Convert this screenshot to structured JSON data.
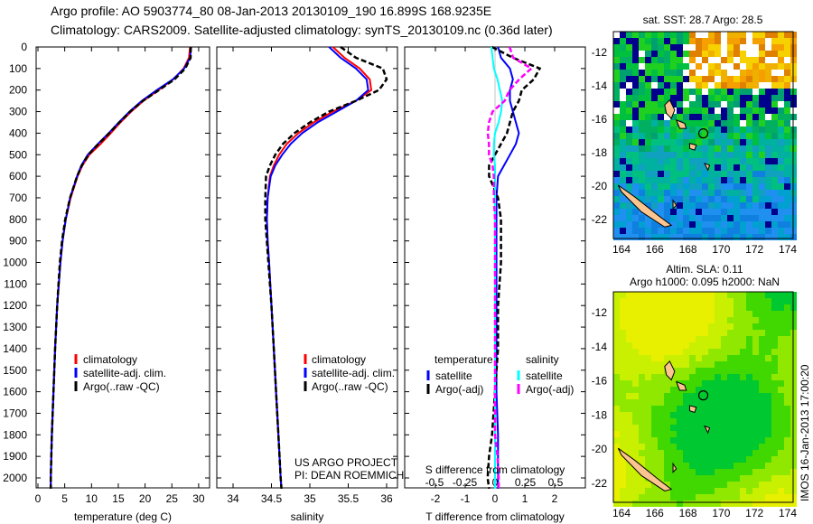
{
  "header": {
    "line1": "Argo profile: AO 5903774_80 08-Jan-2013 20130109_190 16.899S 168.9235E",
    "line2": "Climatology: CARS2009. Satellite-adjusted climatology: synTS_20130109.nc (0.36d later)"
  },
  "colors": {
    "climatology": "#ff0000",
    "satellite": "#0000ff",
    "argo": "#000000",
    "sal_sat": "#00ffff",
    "sal_argo": "#ff00ff"
  },
  "chart_data": [
    {
      "type": "line",
      "name": "temperature",
      "xlabel": "temperature (deg C)",
      "ylabel": "depth",
      "xlim": [
        -1,
        31.5
      ],
      "ylim": [
        2060,
        0
      ],
      "xticks": [
        0,
        5,
        10,
        15,
        20,
        25,
        30
      ],
      "yticks": [
        0,
        100,
        200,
        300,
        400,
        500,
        600,
        700,
        800,
        900,
        1000,
        1100,
        1200,
        1300,
        1400,
        1500,
        1600,
        1700,
        1800,
        1900,
        2000
      ],
      "depth": [
        0,
        50,
        100,
        150,
        200,
        250,
        300,
        350,
        400,
        450,
        500,
        550,
        600,
        700,
        800,
        900,
        1000,
        1200,
        1400,
        1600,
        1800,
        2000,
        2050
      ],
      "series": [
        {
          "name": "climatology",
          "values": [
            28.4,
            28.2,
            27.2,
            25.3,
            22.5,
            19.7,
            17.4,
            15.4,
            13.6,
            11.7,
            9.6,
            8.3,
            7.4,
            6.1,
            5.2,
            4.6,
            4.2,
            3.6,
            3.2,
            2.9,
            2.6,
            2.4,
            2.4
          ]
        },
        {
          "name": "satellite-adj. clim.",
          "values": [
            28.6,
            28.4,
            27.3,
            25.2,
            22.2,
            19.4,
            17.1,
            15.1,
            13.2,
            11.2,
            9.3,
            8.1,
            7.3,
            6.0,
            5.2,
            4.6,
            4.2,
            3.6,
            3.2,
            2.9,
            2.6,
            2.4,
            2.4
          ]
        },
        {
          "name": "Argo(..raw -QC)",
          "values": [
            28.5,
            28.5,
            27.5,
            25.5,
            22.6,
            19.6,
            17.2,
            15.2,
            13.3,
            11.3,
            9.4,
            8.2,
            7.3,
            6.0,
            5.1,
            4.5,
            4.1,
            3.6,
            3.2,
            2.9,
            2.6,
            2.4,
            2.4
          ]
        }
      ],
      "legend": [
        "climatology",
        "satellite-adj. clim.",
        "Argo(..raw -QC)"
      ],
      "legend_position": "bottom-center"
    },
    {
      "type": "line",
      "name": "salinity",
      "xlabel": "salinity",
      "xlim": [
        33.6,
        36.1
      ],
      "ylim": [
        2060,
        0
      ],
      "xticks": [
        34,
        34.5,
        35,
        35.5,
        36
      ],
      "depth": [
        0,
        50,
        100,
        150,
        200,
        250,
        300,
        350,
        400,
        450,
        500,
        550,
        600,
        700,
        800,
        900,
        1000,
        1200,
        1400,
        1600,
        1800,
        2000,
        2050
      ],
      "series": [
        {
          "name": "climatology",
          "values": [
            35.3,
            35.45,
            35.65,
            35.78,
            35.8,
            35.6,
            35.3,
            35.05,
            34.85,
            34.7,
            34.6,
            34.53,
            34.48,
            34.45,
            34.44,
            34.45,
            34.47,
            34.5,
            34.53,
            34.56,
            34.59,
            34.62,
            34.63
          ]
        },
        {
          "name": "satellite-adj. clim.",
          "values": [
            35.25,
            35.4,
            35.6,
            35.74,
            35.76,
            35.6,
            35.35,
            35.1,
            34.9,
            34.75,
            34.64,
            34.55,
            34.49,
            34.45,
            34.44,
            34.45,
            34.47,
            34.5,
            34.53,
            34.56,
            34.59,
            34.62,
            34.63
          ]
        },
        {
          "name": "Argo(..raw -QC)",
          "values": [
            35.4,
            35.6,
            35.95,
            36.0,
            35.9,
            35.6,
            35.25,
            35.0,
            34.8,
            34.65,
            34.55,
            34.48,
            34.43,
            34.42,
            34.42,
            34.44,
            34.46,
            34.5,
            34.53,
            34.56,
            34.59,
            34.62,
            34.63
          ]
        }
      ],
      "legend": [
        "climatology",
        "satellite-adj. clim.",
        "Argo(..raw -QC)"
      ],
      "annotation": [
        "US ARGO PROJECT",
        "PI: DEAN ROEMMICH"
      ]
    },
    {
      "type": "line",
      "name": "difference",
      "xlabel": "T difference from climatology",
      "x2label": "S difference from climatology",
      "xlim": [
        -3,
        3
      ],
      "x2lim": [
        -0.75,
        0.75
      ],
      "xticks": [
        -2,
        -1,
        0,
        1,
        2
      ],
      "x2ticks": [
        "-0.5",
        "-0.25",
        "0",
        "0.25",
        "0.5"
      ],
      "x2tickvals": [
        -0.5,
        -0.25,
        0,
        0.25,
        0.5
      ],
      "depth": [
        0,
        50,
        100,
        150,
        200,
        250,
        300,
        350,
        400,
        450,
        500,
        550,
        600,
        700,
        800,
        900,
        1000,
        1200,
        1400,
        1600,
        1800,
        1900,
        2000,
        2050
      ],
      "series": [
        {
          "name": "T satellite",
          "axis": "T",
          "values": [
            0.1,
            0.2,
            0.5,
            0.6,
            0.5,
            0.5,
            0.6,
            0.7,
            0.8,
            0.7,
            0.5,
            0.3,
            0.1,
            0.05,
            0.05,
            0.05,
            0.05,
            0.05,
            0.05,
            0.05,
            0.1,
            0.1,
            0.1,
            0.1
          ]
        },
        {
          "name": "T Argo(-adj)",
          "axis": "T",
          "values": [
            -0.1,
            0.6,
            1.5,
            1.3,
            0.9,
            0.8,
            0.6,
            0.5,
            0.4,
            0.2,
            0.0,
            -0.2,
            -0.2,
            0.1,
            0.2,
            0.2,
            0.2,
            0.1,
            0.1,
            0.0,
            -0.1,
            -0.2,
            -0.25,
            -0.2
          ]
        },
        {
          "name": "S satellite",
          "axis": "S",
          "values": [
            -0.03,
            -0.02,
            -0.01,
            0.02,
            0.04,
            0.06,
            0.05,
            0.03,
            0.0,
            -0.01,
            -0.01,
            0.0,
            0.0,
            0.0,
            0.0,
            0.0,
            0.0,
            0.0,
            0.0,
            0.0,
            0.0,
            0.0,
            0.0,
            0.0
          ]
        },
        {
          "name": "S Argo(-adj)",
          "axis": "S",
          "values": [
            0.12,
            0.15,
            0.3,
            0.2,
            0.12,
            0.08,
            -0.02,
            -0.05,
            -0.06,
            -0.05,
            -0.05,
            -0.02,
            -0.01,
            -0.01,
            0.0,
            0.0,
            0.0,
            0.0,
            0.0,
            0.0,
            0.0,
            0.02,
            0.03,
            0.03
          ]
        }
      ],
      "legend": {
        "temperature": "temperature",
        "salinity": "salinity",
        "t_sat": "satellite",
        "t_argo": "Argo(-adj)",
        "s_sat": "satellite",
        "s_argo": "Argo(-adj)"
      }
    },
    {
      "type": "heatmap",
      "name": "sst-map",
      "title": "sat. SST: 28.7 Argo: 28.5",
      "lon_ticks": [
        164,
        166,
        168,
        170,
        172,
        174
      ],
      "lat_ticks": [
        -12,
        -14,
        -16,
        -18,
        -20,
        -22
      ],
      "marker": {
        "lon": 168.92,
        "lat": -16.9
      }
    },
    {
      "type": "heatmap",
      "name": "sla-map",
      "title1": "Altim. SLA: 0.11",
      "title2": "Argo h1000: 0.095 h2000: NaN",
      "lon_ticks": [
        164,
        166,
        168,
        170,
        172,
        174
      ],
      "lat_ticks": [
        -12,
        -14,
        -16,
        -18,
        -20,
        -22
      ],
      "marker": {
        "lon": 168.92,
        "lat": -16.9
      }
    }
  ],
  "footer": {
    "stamp": "IMOS 16-Jan-2013 17:00:20"
  }
}
